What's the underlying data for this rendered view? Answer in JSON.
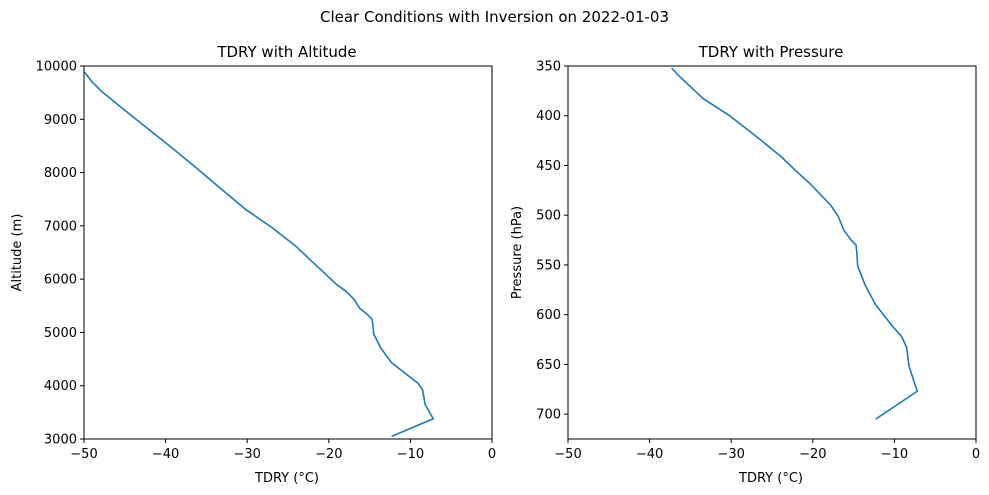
{
  "figure_title": "Clear Conditions with Inversion on 2022-01-03",
  "colors": {
    "series": "#1f77b4",
    "axis": "#000000",
    "background": "#ffffff"
  },
  "chart_data": [
    {
      "type": "line",
      "title": "TDRY with Altitude",
      "xlabel": "TDRY (°C)",
      "ylabel": "Altitude (m)",
      "xlim": [
        -50,
        0
      ],
      "ylim": [
        3000,
        10000
      ],
      "y_inverted": false,
      "grid": false,
      "xticks": [
        -50,
        -40,
        -30,
        -20,
        -10,
        0
      ],
      "xtick_labels": [
        "−50",
        "−40",
        "−30",
        "−20",
        "−10",
        "0"
      ],
      "yticks": [
        3000,
        4000,
        5000,
        6000,
        7000,
        8000,
        9000,
        10000
      ],
      "ytick_labels": [
        "3000",
        "4000",
        "5000",
        "6000",
        "7000",
        "8000",
        "9000",
        "10000"
      ],
      "series": [
        {
          "x": [
            -12.3,
            -7.2,
            -8.2,
            -8.5,
            -9.1,
            -10.2,
            -12.3,
            -13.6,
            -14.5,
            -14.6,
            -14.7,
            -15.3,
            -16.2,
            -16.9,
            -17.8,
            -19.2,
            -20.5,
            -22.0,
            -23.9,
            -26.9,
            -30.2,
            -33.4,
            -36.4,
            -39.6,
            -42.8,
            -45.5,
            -47.9,
            -49.0,
            -49.9
          ],
          "y": [
            3050,
            3380,
            3650,
            3920,
            4050,
            4180,
            4430,
            4700,
            4970,
            5140,
            5250,
            5340,
            5450,
            5620,
            5760,
            5920,
            6110,
            6320,
            6600,
            6960,
            7310,
            7720,
            8110,
            8510,
            8900,
            9230,
            9530,
            9700,
            9880
          ]
        }
      ]
    },
    {
      "type": "line",
      "title": "TDRY with Pressure",
      "xlabel": "TDRY (°C)",
      "ylabel": "Pressure (hPa)",
      "xlim": [
        -50,
        0
      ],
      "ylim": [
        725,
        350
      ],
      "y_inverted": true,
      "grid": false,
      "xticks": [
        -50,
        -40,
        -30,
        -20,
        -10,
        0
      ],
      "xtick_labels": [
        "−50",
        "−40",
        "−30",
        "−20",
        "−10",
        "0"
      ],
      "yticks": [
        350,
        400,
        450,
        500,
        550,
        600,
        650,
        700
      ],
      "ytick_labels": [
        "350",
        "400",
        "450",
        "500",
        "550",
        "600",
        "650",
        "700"
      ],
      "series": [
        {
          "x": [
            -12.3,
            -7.2,
            -8.2,
            -8.5,
            -9.1,
            -10.2,
            -12.3,
            -13.6,
            -14.5,
            -14.6,
            -14.7,
            -15.3,
            -16.2,
            -16.9,
            -17.8,
            -19.2,
            -20.5,
            -22.0,
            -23.9,
            -26.9,
            -30.2,
            -33.4,
            -36.4,
            -37.3
          ],
          "y": [
            705,
            677,
            652,
            633,
            622,
            612,
            590,
            570,
            551,
            538,
            530,
            525,
            515,
            501,
            490,
            478,
            467,
            456,
            441,
            421,
            400,
            383,
            360,
            352
          ]
        }
      ]
    }
  ]
}
